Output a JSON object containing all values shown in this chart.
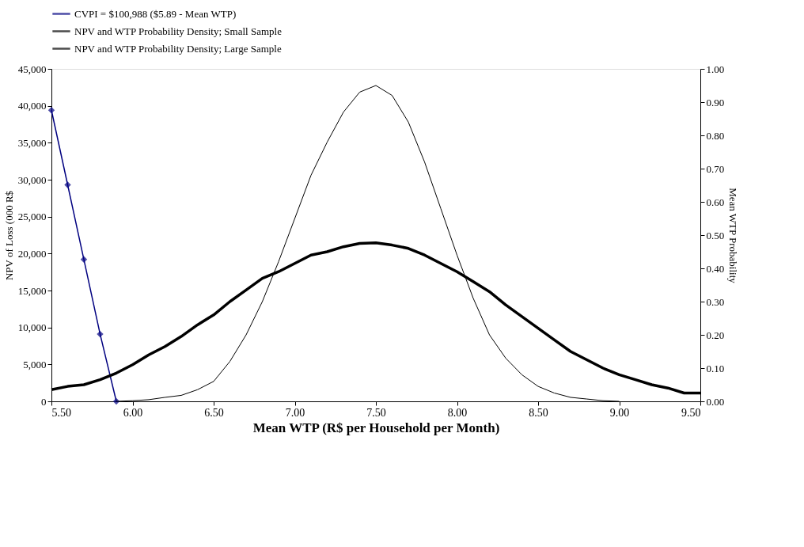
{
  "chart_data": {
    "type": "line",
    "xlabel": "Mean WTP (R$ per Household per Month)",
    "ylabel": "NPV of Loss (000 R$",
    "y2label": "Mean WTP Probability",
    "xlim": [
      5.5,
      9.5
    ],
    "ylim": [
      0,
      45000
    ],
    "y2lim": [
      0,
      1
    ],
    "xticks": [
      {
        "value": 5.5,
        "label": "5.50"
      },
      {
        "value": 6,
        "label": "6.00"
      },
      {
        "value": 6.5,
        "label": "6.50"
      },
      {
        "value": 7,
        "label": "7.00"
      },
      {
        "value": 7.5,
        "label": "7.50"
      },
      {
        "value": 8,
        "label": "8.00"
      },
      {
        "value": 8.5,
        "label": "8.50"
      },
      {
        "value": 9,
        "label": "9.00"
      },
      {
        "value": 9.5,
        "label": "9.50"
      }
    ],
    "yticks": [
      0,
      {
        "value": 5000,
        "label": "5,000"
      },
      {
        "value": 10000,
        "label": "10,000"
      },
      {
        "value": 15000,
        "label": "15,000"
      },
      {
        "value": 20000,
        "label": "20,000"
      },
      {
        "value": 25000,
        "label": "25,000"
      },
      {
        "value": 30000,
        "label": "30,000"
      },
      {
        "value": 35000,
        "label": "35,000"
      },
      {
        "value": 40000,
        "label": "40,000"
      },
      {
        "value": 45000,
        "label": "45,000"
      }
    ],
    "y2ticks": [
      {
        "value": 0,
        "label": "0.00"
      },
      {
        "value": 0.1,
        "label": "0.10"
      },
      {
        "value": 0.2,
        "label": "0.20"
      },
      {
        "value": 0.3,
        "label": "0.30"
      },
      {
        "value": 0.4,
        "label": "0.40"
      },
      {
        "value": 0.5,
        "label": "0.50"
      },
      {
        "value": 0.6,
        "label": "0.60"
      },
      {
        "value": 0.7,
        "label": "0.70"
      },
      {
        "value": 0.8,
        "label": "0.80"
      },
      {
        "value": 0.9,
        "label": "0.90"
      },
      {
        "value": 1,
        "label": "1.00"
      }
    ],
    "grid": false,
    "legend": "top",
    "series": [
      {
        "name": "CVPI = $100,988 ($5.89 - Mean WTP)",
        "color": "#000080",
        "marker": "diamond",
        "x": [
          5.5,
          5.6,
          5.7,
          5.8,
          5.9
        ],
        "values": [
          39400,
          29300,
          19200,
          9100,
          0
        ]
      },
      {
        "name": "NPV and WTP Probability Density; Small Sample",
        "color": "#000000",
        "marker": "none",
        "axis": "y2",
        "x": [
          5.5,
          5.6,
          5.7,
          5.8,
          5.9,
          6.0,
          6.1,
          6.2,
          6.3,
          6.4,
          6.5,
          6.6,
          6.7,
          6.8,
          6.9,
          7.0,
          7.1,
          7.2,
          7.3,
          7.4,
          7.5,
          7.6,
          7.7,
          7.8,
          7.9,
          8.0,
          8.1,
          8.2,
          8.3,
          8.4,
          8.5,
          8.6,
          8.7,
          8.8,
          8.9,
          9.0,
          9.1,
          9.2,
          9.3,
          9.4,
          9.5
        ],
        "values": [
          0.035,
          0.045,
          0.05,
          0.065,
          0.085,
          0.11,
          0.14,
          0.165,
          0.195,
          0.23,
          0.26,
          0.3,
          0.335,
          0.37,
          0.39,
          0.415,
          0.44,
          0.45,
          0.465,
          0.475,
          0.477,
          0.47,
          0.46,
          0.44,
          0.415,
          0.39,
          0.36,
          0.33,
          0.29,
          0.255,
          0.22,
          0.185,
          0.15,
          0.125,
          0.1,
          0.08,
          0.065,
          0.05,
          0.04,
          0.025,
          0.025
        ]
      },
      {
        "name": "NPV and WTP Probability Density; Large Sample",
        "color": "#000000",
        "marker": "none",
        "axis": "y2",
        "x": [
          5.9,
          6.0,
          6.1,
          6.2,
          6.3,
          6.4,
          6.5,
          6.6,
          6.7,
          6.8,
          6.9,
          7.0,
          7.1,
          7.2,
          7.3,
          7.4,
          7.5,
          7.6,
          7.7,
          7.8,
          7.9,
          8.0,
          8.1,
          8.2,
          8.3,
          8.4,
          8.5,
          8.6,
          8.7,
          8.8,
          8.9,
          9.0
        ],
        "values": [
          0,
          0.002,
          0.005,
          0.012,
          0.018,
          0.035,
          0.06,
          0.12,
          0.2,
          0.3,
          0.42,
          0.55,
          0.68,
          0.78,
          0.87,
          0.93,
          0.95,
          0.92,
          0.84,
          0.72,
          0.58,
          0.44,
          0.31,
          0.2,
          0.13,
          0.08,
          0.045,
          0.025,
          0.012,
          0.007,
          0.002,
          0
        ]
      }
    ]
  }
}
